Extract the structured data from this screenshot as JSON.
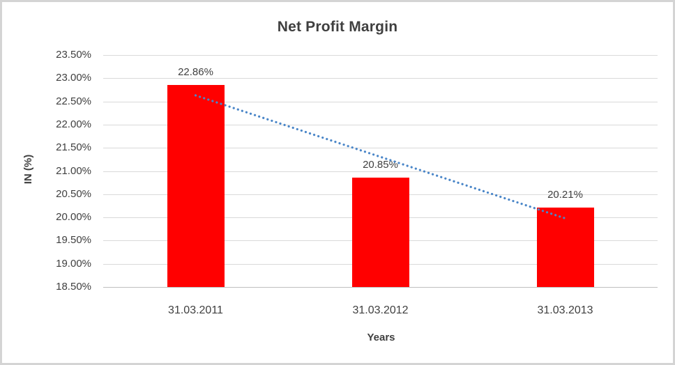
{
  "frame": {
    "background": "#ffffff",
    "border_color": "#d4d4d4"
  },
  "chart_data": {
    "type": "bar",
    "title": "Net Profit Margin",
    "xlabel": "Years",
    "ylabel": "IN (%)",
    "categories": [
      "31.03.2011",
      "31.03.2012",
      "31.03.2013"
    ],
    "values": [
      22.86,
      20.85,
      20.21
    ],
    "data_labels": [
      "22.86%",
      "20.85%",
      "20.21%"
    ],
    "y_ticks": [
      "23.50%",
      "23.00%",
      "22.50%",
      "22.00%",
      "21.50%",
      "21.00%",
      "20.50%",
      "20.00%",
      "19.50%",
      "19.00%",
      "18.50%"
    ],
    "y_tick_values": [
      23.5,
      23.0,
      22.5,
      22.0,
      21.5,
      21.0,
      20.5,
      20.0,
      19.5,
      19.0,
      18.5
    ],
    "ylim": [
      18.5,
      23.5
    ],
    "grid": true,
    "legend": "none",
    "bar_color": "#ff0000",
    "gridline_color": "#d9d9d9",
    "axis_line_color": "#bfbfbf",
    "text_color": "#3f3f3f",
    "trendline": {
      "type": "linear",
      "style": "dotted",
      "color": "#4a86c8",
      "start_value": 22.63,
      "end_value": 19.98
    }
  }
}
